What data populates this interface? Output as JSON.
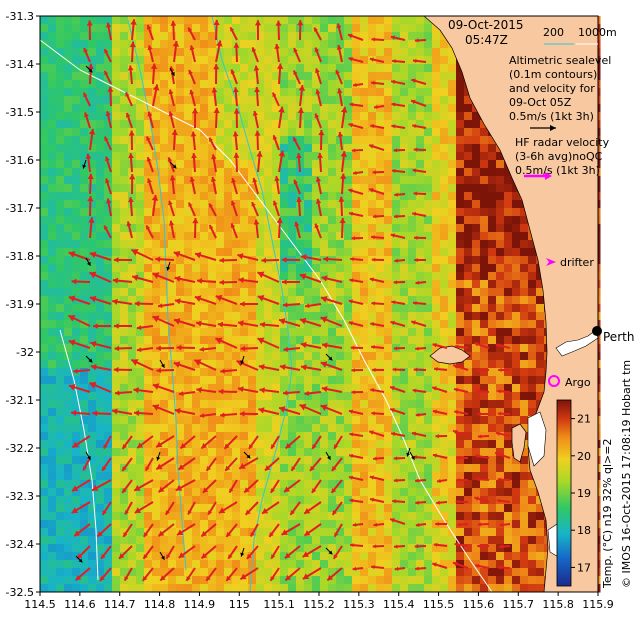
{
  "title": {
    "date": "09-Oct-2015",
    "time": "05:47Z"
  },
  "bathymetry_legend": {
    "label_200": "200",
    "label_1000": "1000m"
  },
  "altimetry_legend": {
    "lines": [
      "Altimetric sealevel",
      "(0.1m contours)",
      "and velocity for",
      "09-Oct 05Z",
      "0.5m/s (1kt 3h)"
    ]
  },
  "hf_radar_legend": {
    "lines": [
      "HF radar velocity",
      "(3-6h avg)noQC",
      "0.5m/s (1kt 3h)"
    ]
  },
  "markers": {
    "drifter": "drifter",
    "argo": "Argo",
    "city": "Perth",
    "hobart_tm": "Hobart tm"
  },
  "colorbar": {
    "label": "Temp. (°C) n19 32% ql>=2",
    "ticks": [
      17,
      18,
      19,
      20,
      21
    ],
    "min": 16.5,
    "max": 21.5
  },
  "credit": "© IMOS 16-Oct-2015 17:08:19 Hobart tm",
  "axes": {
    "x_ticks": [
      "114.5",
      "114.6",
      "114.7",
      "114.8",
      "114.9",
      "115",
      "115.1",
      "115.2",
      "115.3",
      "115.4",
      "115.5",
      "115.6",
      "115.7",
      "115.8",
      "115.9"
    ],
    "y_ticks": [
      "-31.3",
      "-31.4",
      "-31.5",
      "-31.6",
      "-31.7",
      "-31.8",
      "-31.9",
      "-32",
      "-32.1",
      "-32.2",
      "-32.3",
      "-32.4",
      "-32.5"
    ],
    "xlim": [
      114.5,
      115.9
    ],
    "ylim": [
      -32.5,
      -31.3
    ]
  },
  "colors": {
    "land": "#f8c8a0",
    "hf_arrow": "#e02020",
    "alt_arrow": "#000000",
    "marker_magenta": "#ff00ff",
    "bathy_200": "#30c8d8",
    "bathy_1000": "#ffffff"
  }
}
